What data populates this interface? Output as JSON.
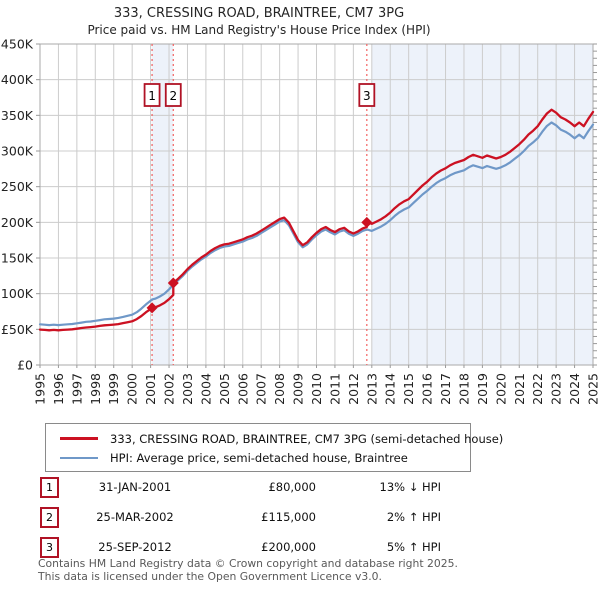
{
  "title": "333, CRESSING ROAD, BRAINTREE, CM7 3PG",
  "subtitle": "Price paid vs. HM Land Registry's House Price Index (HPI)",
  "legend": {
    "series1_label": "333, CRESSING ROAD, BRAINTREE, CM7 3PG (semi-detached house)",
    "series2_label": "HPI: Average price, semi-detached house, Braintree"
  },
  "transactions": [
    {
      "num": "1",
      "date": "31-JAN-2001",
      "price": "£80,000",
      "hpi_delta": "13% ↓ HPI"
    },
    {
      "num": "2",
      "date": "25-MAR-2002",
      "price": "£115,000",
      "hpi_delta": "2% ↑ HPI"
    },
    {
      "num": "3",
      "date": "25-SEP-2012",
      "price": "£200,000",
      "hpi_delta": "5% ↑ HPI"
    }
  ],
  "footer": {
    "line1": "Contains HM Land Registry data © Crown copyright and database right 2025.",
    "line2": "This data is licensed under the Open Government Licence v3.0."
  },
  "colors": {
    "price_line": "#cc1122",
    "hpi_line": "#6f98c8",
    "marker_box_border": "#b01225",
    "vline": "#f26060",
    "band": "#edf2fa",
    "grid": "#cccccc",
    "spine": "#aaaaaa",
    "tick": "#999999",
    "axis_text": "#222222"
  },
  "chart_data": {
    "type": "line",
    "title": "333, CRESSING ROAD, BRAINTREE, CM7 3PG",
    "subtitle": "Price paid vs. HM Land Registry's House Price Index (HPI)",
    "xlabel": "",
    "ylabel": "",
    "x_range": [
      1995,
      2025
    ],
    "y_range_k": [
      0,
      450
    ],
    "y_unit": "GBP thousands",
    "grid": true,
    "legend_position": "below",
    "x_ticks": [
      1995,
      1996,
      1997,
      1998,
      1999,
      2000,
      2001,
      2002,
      2003,
      2004,
      2005,
      2006,
      2007,
      2008,
      2009,
      2010,
      2011,
      2012,
      2013,
      2014,
      2015,
      2016,
      2017,
      2018,
      2019,
      2020,
      2021,
      2022,
      2023,
      2024,
      2025
    ],
    "y_ticks": [
      {
        "v": 0,
        "label": "£0"
      },
      {
        "v": 50,
        "label": "£50K"
      },
      {
        "v": 100,
        "label": "£100K"
      },
      {
        "v": 150,
        "label": "£150K"
      },
      {
        "v": 200,
        "label": "£200K"
      },
      {
        "v": 250,
        "label": "£250K"
      },
      {
        "v": 300,
        "label": "£300K"
      },
      {
        "v": 350,
        "label": "£350K"
      },
      {
        "v": 400,
        "label": "£400K"
      },
      {
        "v": 450,
        "label": "£450K"
      }
    ],
    "bands": [
      [
        2001.08,
        2002.23
      ],
      [
        2013.0,
        2025.0
      ]
    ],
    "vlines": [
      2001.08,
      2002.23,
      2012.73
    ],
    "sales": [
      {
        "num": "1",
        "x": 2001.08,
        "y": 80,
        "date": "31-JAN-2001",
        "price_gbp": 80000
      },
      {
        "num": "2",
        "x": 2002.23,
        "y": 115,
        "date": "25-MAR-2002",
        "price_gbp": 115000
      },
      {
        "num": "3",
        "x": 2012.73,
        "y": 200,
        "date": "25-SEP-2012",
        "price_gbp": 200000
      }
    ],
    "series": [
      {
        "name": "HPI: Average price, semi-detached house, Braintree",
        "color": "#6f98c8",
        "width": 2.2,
        "points": [
          [
            1995,
            57
          ],
          [
            1995.25,
            56.5
          ],
          [
            1995.5,
            56
          ],
          [
            1995.75,
            56.5
          ],
          [
            1996,
            56
          ],
          [
            1996.25,
            56.5
          ],
          [
            1996.5,
            57
          ],
          [
            1996.75,
            57.5
          ],
          [
            1997,
            58.5
          ],
          [
            1997.25,
            59.5
          ],
          [
            1997.5,
            60.5
          ],
          [
            1997.75,
            61
          ],
          [
            1998,
            62
          ],
          [
            1998.25,
            63
          ],
          [
            1998.5,
            64
          ],
          [
            1998.75,
            64.5
          ],
          [
            1999,
            65
          ],
          [
            1999.25,
            66
          ],
          [
            1999.5,
            67.5
          ],
          [
            1999.75,
            69
          ],
          [
            2000,
            70.5
          ],
          [
            2000.25,
            74
          ],
          [
            2000.5,
            79
          ],
          [
            2000.75,
            85
          ],
          [
            2001,
            90
          ],
          [
            2001.08,
            92
          ],
          [
            2001.25,
            93
          ],
          [
            2001.5,
            96
          ],
          [
            2001.75,
            100
          ],
          [
            2002,
            106
          ],
          [
            2002.25,
            113
          ],
          [
            2002.5,
            119
          ],
          [
            2002.75,
            125
          ],
          [
            2003,
            132
          ],
          [
            2003.25,
            138
          ],
          [
            2003.5,
            143
          ],
          [
            2003.75,
            148
          ],
          [
            2004,
            152
          ],
          [
            2004.25,
            157
          ],
          [
            2004.5,
            161
          ],
          [
            2004.75,
            164
          ],
          [
            2005,
            166
          ],
          [
            2005.25,
            167
          ],
          [
            2005.5,
            169
          ],
          [
            2005.75,
            171
          ],
          [
            2006,
            173
          ],
          [
            2006.25,
            176
          ],
          [
            2006.5,
            178
          ],
          [
            2006.75,
            181
          ],
          [
            2007,
            185
          ],
          [
            2007.25,
            189
          ],
          [
            2007.5,
            193
          ],
          [
            2007.75,
            197
          ],
          [
            2008,
            201
          ],
          [
            2008.25,
            203
          ],
          [
            2008.5,
            196
          ],
          [
            2008.75,
            184
          ],
          [
            2009,
            172
          ],
          [
            2009.25,
            165
          ],
          [
            2009.5,
            169
          ],
          [
            2009.75,
            176
          ],
          [
            2010,
            182
          ],
          [
            2010.25,
            187
          ],
          [
            2010.5,
            190
          ],
          [
            2010.75,
            186
          ],
          [
            2011,
            183
          ],
          [
            2011.25,
            187
          ],
          [
            2011.5,
            189
          ],
          [
            2011.75,
            184
          ],
          [
            2012,
            181
          ],
          [
            2012.25,
            184
          ],
          [
            2012.5,
            188
          ],
          [
            2012.75,
            190
          ],
          [
            2013,
            188
          ],
          [
            2013.25,
            191
          ],
          [
            2013.5,
            194
          ],
          [
            2013.75,
            198
          ],
          [
            2014,
            203
          ],
          [
            2014.25,
            209
          ],
          [
            2014.5,
            214
          ],
          [
            2014.75,
            218
          ],
          [
            2015,
            221
          ],
          [
            2015.25,
            227
          ],
          [
            2015.5,
            233
          ],
          [
            2015.75,
            239
          ],
          [
            2016,
            244
          ],
          [
            2016.25,
            250
          ],
          [
            2016.5,
            255
          ],
          [
            2016.75,
            259
          ],
          [
            2017,
            262
          ],
          [
            2017.25,
            266
          ],
          [
            2017.5,
            269
          ],
          [
            2017.75,
            271
          ],
          [
            2018,
            273
          ],
          [
            2018.25,
            277
          ],
          [
            2018.5,
            280
          ],
          [
            2018.75,
            278
          ],
          [
            2019,
            276
          ],
          [
            2019.25,
            279
          ],
          [
            2019.5,
            277
          ],
          [
            2019.75,
            275
          ],
          [
            2020,
            277
          ],
          [
            2020.25,
            280
          ],
          [
            2020.5,
            284
          ],
          [
            2020.75,
            289
          ],
          [
            2021,
            294
          ],
          [
            2021.25,
            300
          ],
          [
            2021.5,
            307
          ],
          [
            2021.75,
            312
          ],
          [
            2022,
            318
          ],
          [
            2022.25,
            327
          ],
          [
            2022.5,
            335
          ],
          [
            2022.75,
            340
          ],
          [
            2023,
            336
          ],
          [
            2023.25,
            330
          ],
          [
            2023.5,
            327
          ],
          [
            2023.75,
            323
          ],
          [
            2024,
            318
          ],
          [
            2024.25,
            323
          ],
          [
            2024.5,
            318
          ],
          [
            2024.75,
            328
          ],
          [
            2025,
            337
          ]
        ]
      },
      {
        "name": "333, CRESSING ROAD, BRAINTREE, CM7 3PG (semi-detached house)",
        "color": "#cc1122",
        "width": 2.3,
        "points": [
          [
            1995,
            49.6
          ],
          [
            1995.25,
            49.2
          ],
          [
            1995.5,
            48.7
          ],
          [
            1995.75,
            49.2
          ],
          [
            1996,
            48.7
          ],
          [
            1996.25,
            49.2
          ],
          [
            1996.5,
            49.6
          ],
          [
            1996.75,
            50
          ],
          [
            1997,
            50.9
          ],
          [
            1997.25,
            51.8
          ],
          [
            1997.5,
            52.6
          ],
          [
            1997.75,
            53.1
          ],
          [
            1998,
            53.9
          ],
          [
            1998.25,
            54.8
          ],
          [
            1998.5,
            55.7
          ],
          [
            1998.75,
            56.1
          ],
          [
            1999,
            56.6
          ],
          [
            1999.25,
            57.4
          ],
          [
            1999.5,
            58.7
          ],
          [
            1999.75,
            60
          ],
          [
            2000,
            61.3
          ],
          [
            2000.25,
            64.4
          ],
          [
            2000.5,
            68.7
          ],
          [
            2000.75,
            74
          ],
          [
            2001,
            78.3
          ],
          [
            2001.08,
            80
          ],
          [
            2001.25,
            80.9
          ],
          [
            2001.5,
            83.5
          ],
          [
            2001.75,
            87
          ],
          [
            2002,
            92.2
          ],
          [
            2002.23,
            98.3
          ],
          [
            2002.23,
            115
          ],
          [
            2002.5,
            121.1
          ],
          [
            2002.75,
            127.3
          ],
          [
            2003,
            134.4
          ],
          [
            2003.25,
            140.5
          ],
          [
            2003.5,
            145.6
          ],
          [
            2003.75,
            150.7
          ],
          [
            2004,
            154.7
          ],
          [
            2004.25,
            159.8
          ],
          [
            2004.5,
            163.9
          ],
          [
            2004.75,
            167
          ],
          [
            2005,
            169
          ],
          [
            2005.25,
            170
          ],
          [
            2005.5,
            172
          ],
          [
            2005.75,
            174.1
          ],
          [
            2006,
            176.1
          ],
          [
            2006.25,
            179.2
          ],
          [
            2006.5,
            181.2
          ],
          [
            2006.75,
            184.3
          ],
          [
            2007,
            188.3
          ],
          [
            2007.25,
            192.4
          ],
          [
            2007.5,
            196.5
          ],
          [
            2007.75,
            200.5
          ],
          [
            2008,
            204.6
          ],
          [
            2008.25,
            206.7
          ],
          [
            2008.5,
            199.5
          ],
          [
            2008.75,
            187.3
          ],
          [
            2009,
            175.1
          ],
          [
            2009.25,
            168
          ],
          [
            2009.5,
            172
          ],
          [
            2009.75,
            179.2
          ],
          [
            2010,
            185.3
          ],
          [
            2010.25,
            190.4
          ],
          [
            2010.5,
            193.4
          ],
          [
            2010.75,
            189.3
          ],
          [
            2011,
            186.3
          ],
          [
            2011.25,
            190.4
          ],
          [
            2011.5,
            192.4
          ],
          [
            2011.75,
            187.3
          ],
          [
            2012,
            184.3
          ],
          [
            2012.25,
            187.3
          ],
          [
            2012.5,
            191.4
          ],
          [
            2012.73,
            193.4
          ],
          [
            2012.73,
            200
          ],
          [
            2013,
            197.9
          ],
          [
            2013.25,
            201
          ],
          [
            2013.5,
            204.2
          ],
          [
            2013.75,
            208.4
          ],
          [
            2014,
            213.7
          ],
          [
            2014.25,
            220
          ],
          [
            2014.5,
            225.3
          ],
          [
            2014.75,
            229.5
          ],
          [
            2015,
            232.6
          ],
          [
            2015.25,
            238.9
          ],
          [
            2015.5,
            245.3
          ],
          [
            2015.75,
            251.6
          ],
          [
            2016,
            256.8
          ],
          [
            2016.25,
            263.2
          ],
          [
            2016.5,
            268.4
          ],
          [
            2016.75,
            272.6
          ],
          [
            2017,
            275.8
          ],
          [
            2017.25,
            280
          ],
          [
            2017.5,
            283.2
          ],
          [
            2017.75,
            285.3
          ],
          [
            2018,
            287.4
          ],
          [
            2018.25,
            291.6
          ],
          [
            2018.5,
            294.7
          ],
          [
            2018.75,
            292.6
          ],
          [
            2019,
            290.5
          ],
          [
            2019.25,
            293.7
          ],
          [
            2019.5,
            291.6
          ],
          [
            2019.75,
            289.5
          ],
          [
            2020,
            291.6
          ],
          [
            2020.25,
            294.7
          ],
          [
            2020.5,
            299
          ],
          [
            2020.75,
            304.2
          ],
          [
            2021,
            309.5
          ],
          [
            2021.25,
            315.8
          ],
          [
            2021.5,
            323.2
          ],
          [
            2021.75,
            328.4
          ],
          [
            2022,
            334.7
          ],
          [
            2022.25,
            344.2
          ],
          [
            2022.5,
            352.6
          ],
          [
            2022.75,
            357.9
          ],
          [
            2023,
            353.7
          ],
          [
            2023.25,
            347.4
          ],
          [
            2023.5,
            344.2
          ],
          [
            2023.75,
            340
          ],
          [
            2024,
            334.7
          ],
          [
            2024.25,
            340
          ],
          [
            2024.5,
            334.7
          ],
          [
            2024.75,
            345.3
          ],
          [
            2025,
            354.7
          ]
        ]
      }
    ]
  }
}
